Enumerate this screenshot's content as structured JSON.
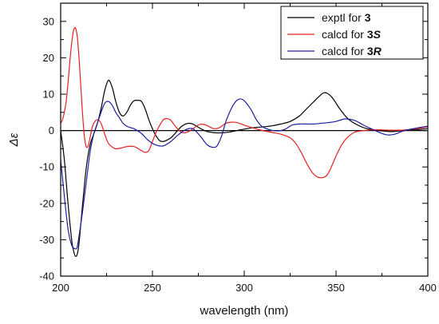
{
  "chart_data": {
    "type": "line",
    "xlabel": "wavelength (nm)",
    "ylabel": "Δε",
    "xlim": [
      200,
      400
    ],
    "ylim": [
      -40,
      35
    ],
    "xticks": [
      200,
      250,
      300,
      350,
      400
    ],
    "yticks": [
      30,
      20,
      10,
      0,
      -10,
      -20,
      -30,
      -40
    ],
    "grid": false,
    "legend_position": "top-right",
    "zero_line": true,
    "series": [
      {
        "name": "exptl for 3",
        "label_text": "exptl for",
        "label_compound": "3",
        "label_config": "",
        "color": "#000000",
        "x": [
          200,
          202,
          204,
          206,
          207,
          208,
          209,
          210,
          212,
          214,
          216,
          218,
          220,
          222,
          224,
          226,
          228,
          230,
          232,
          234,
          236,
          238,
          240,
          242,
          244,
          246,
          248,
          250,
          252,
          254,
          256,
          258,
          260,
          262,
          264,
          266,
          268,
          270,
          272,
          274,
          276,
          278,
          280,
          284,
          288,
          292,
          296,
          300,
          305,
          310,
          315,
          320,
          325,
          330,
          334,
          338,
          341,
          343,
          345,
          348,
          352,
          356,
          360,
          365,
          370,
          375,
          380,
          385,
          390,
          395,
          400
        ],
        "y": [
          0,
          -8,
          -20,
          -30,
          -33,
          -34.5,
          -34,
          -31,
          -20,
          -10,
          -4,
          -1,
          2,
          6,
          11,
          13.8,
          12,
          8,
          5,
          4,
          5,
          7,
          8.2,
          8.3,
          8,
          6,
          3,
          0.5,
          -1.5,
          -2.8,
          -3,
          -2.6,
          -2,
          -1,
          0.2,
          1.2,
          1.8,
          2,
          1.8,
          1.2,
          0.6,
          0.1,
          -0.3,
          -0.6,
          -0.6,
          -0.4,
          0,
          0.4,
          0.8,
          1,
          1.3,
          1.8,
          2.5,
          4,
          6,
          8,
          9.5,
          10.3,
          10.3,
          9,
          6,
          3.5,
          2,
          0.8,
          0.2,
          -0.1,
          -0.3,
          -0.1,
          0.1,
          0.3,
          0.5
        ]
      },
      {
        "name": "calcd for 3S",
        "label_text": "calcd for",
        "label_compound": "3",
        "label_config": "S",
        "color": "#e8201e",
        "x": [
          200,
          201,
          202,
          203,
          204,
          205,
          206,
          207,
          208,
          209,
          210,
          211,
          212,
          213,
          214,
          215,
          216,
          217,
          218,
          220,
          222,
          224,
          226,
          228,
          230,
          233,
          236,
          240,
          244,
          246,
          248,
          250,
          252,
          254,
          256,
          258,
          260,
          262,
          264,
          266,
          268,
          270,
          272,
          274,
          276,
          278,
          280,
          282,
          284,
          286,
          288,
          290,
          293,
          296,
          300,
          305,
          310,
          315,
          320,
          325,
          328,
          331,
          334,
          337,
          340,
          343,
          345,
          347,
          350,
          353,
          356,
          360,
          365,
          370,
          375,
          380,
          385,
          390,
          395,
          400
        ],
        "y": [
          2,
          3,
          5,
          8,
          13,
          19,
          24,
          27.5,
          28.2,
          26,
          20,
          12,
          4,
          -2,
          -4.5,
          -4.2,
          -2,
          0.5,
          2,
          3,
          2,
          -1,
          -3.5,
          -4.5,
          -5,
          -4.8,
          -4.4,
          -4.4,
          -5.5,
          -6,
          -5.5,
          -3,
          -0.5,
          1.5,
          3,
          3.3,
          2.8,
          1.5,
          0.3,
          -0.5,
          -0.6,
          -0.2,
          0.5,
          1.2,
          1.7,
          1.7,
          1.3,
          0.8,
          0.5,
          0.7,
          1.3,
          2,
          2.3,
          2.2,
          1.5,
          0.7,
          0,
          -0.5,
          -1,
          -2,
          -3.5,
          -6,
          -9,
          -11.5,
          -12.8,
          -12.9,
          -12.3,
          -10.5,
          -7,
          -4,
          -2,
          -0.5,
          0,
          0.2,
          0.2,
          0.1,
          0.1,
          0.3,
          0.6,
          1
        ]
      },
      {
        "name": "calcd for 3R",
        "label_text": "calcd for",
        "label_compound": "3",
        "label_config": "R",
        "color": "#1c1f9e",
        "x": [
          200,
          202,
          204,
          206,
          208,
          209,
          210,
          212,
          214,
          216,
          218,
          220,
          222,
          224,
          226,
          228,
          230,
          232,
          234,
          236,
          238,
          240,
          244,
          248,
          252,
          256,
          260,
          264,
          268,
          272,
          276,
          280,
          284,
          286,
          288,
          290,
          292,
          294,
          296,
          298,
          300,
          302,
          304,
          306,
          308,
          310,
          314,
          318,
          322,
          326,
          330,
          334,
          338,
          342,
          346,
          350,
          355,
          360,
          365,
          370,
          375,
          378,
          382,
          386,
          390,
          395,
          400
        ],
        "y": [
          -8,
          -18,
          -27,
          -31.5,
          -32.5,
          -32,
          -29,
          -22,
          -14,
          -6,
          -1,
          2,
          5,
          7.5,
          8,
          7,
          5,
          3.5,
          2,
          1.2,
          0.8,
          0.5,
          -0.8,
          -2.8,
          -4,
          -4.2,
          -3,
          -1.2,
          0.2,
          0.5,
          -1.5,
          -4,
          -4.6,
          -3.5,
          -1,
          2.5,
          5,
          7,
          8.3,
          8.7,
          8.2,
          7,
          5.5,
          3.5,
          2,
          1,
          0.2,
          -0.1,
          0.3,
          1.5,
          1.8,
          1.8,
          1.8,
          2,
          2.2,
          2.5,
          3.2,
          2.8,
          1.5,
          0.3,
          -0.8,
          -1.2,
          -1,
          -0.2,
          0.3,
          0.8,
          1.2
        ]
      }
    ]
  }
}
